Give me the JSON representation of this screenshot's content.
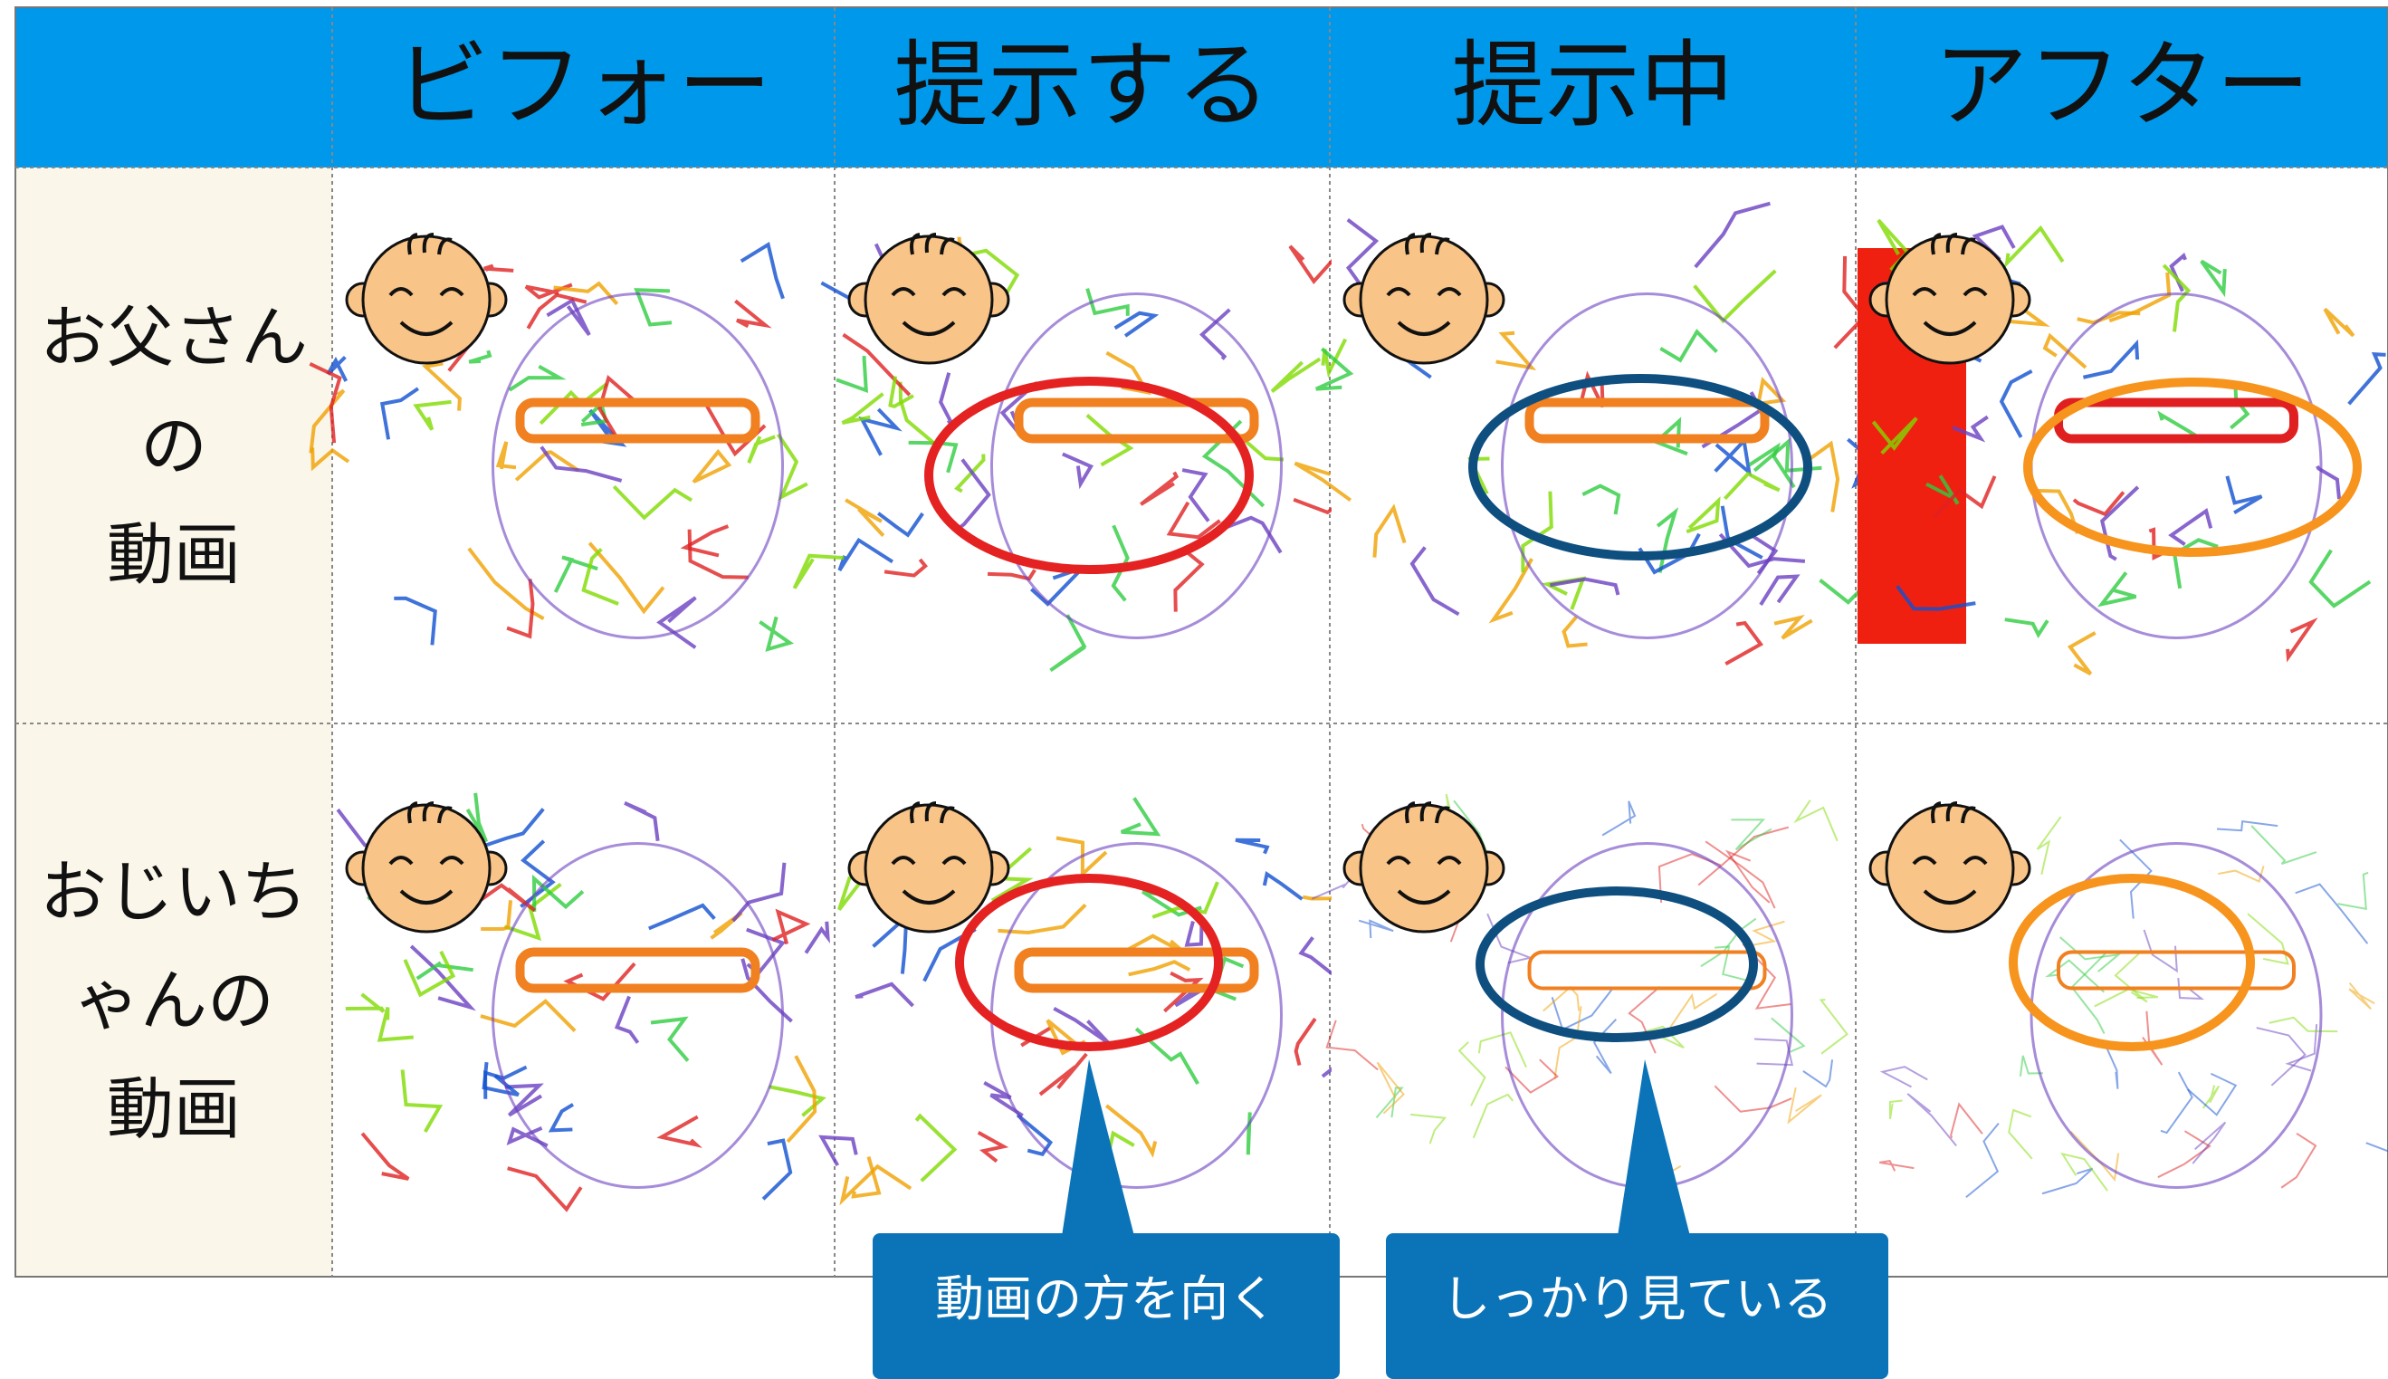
{
  "header": {
    "columns": [
      "ビフォー",
      "提示する",
      "提示中",
      "アフター"
    ]
  },
  "rows": [
    {
      "label": [
        "お父さん",
        "の",
        "動画"
      ]
    },
    {
      "label": [
        "おじいち",
        "ゃんの",
        "動画"
      ]
    }
  ],
  "callouts": [
    "動画の方を向く",
    "しっかり見ている"
  ]
}
